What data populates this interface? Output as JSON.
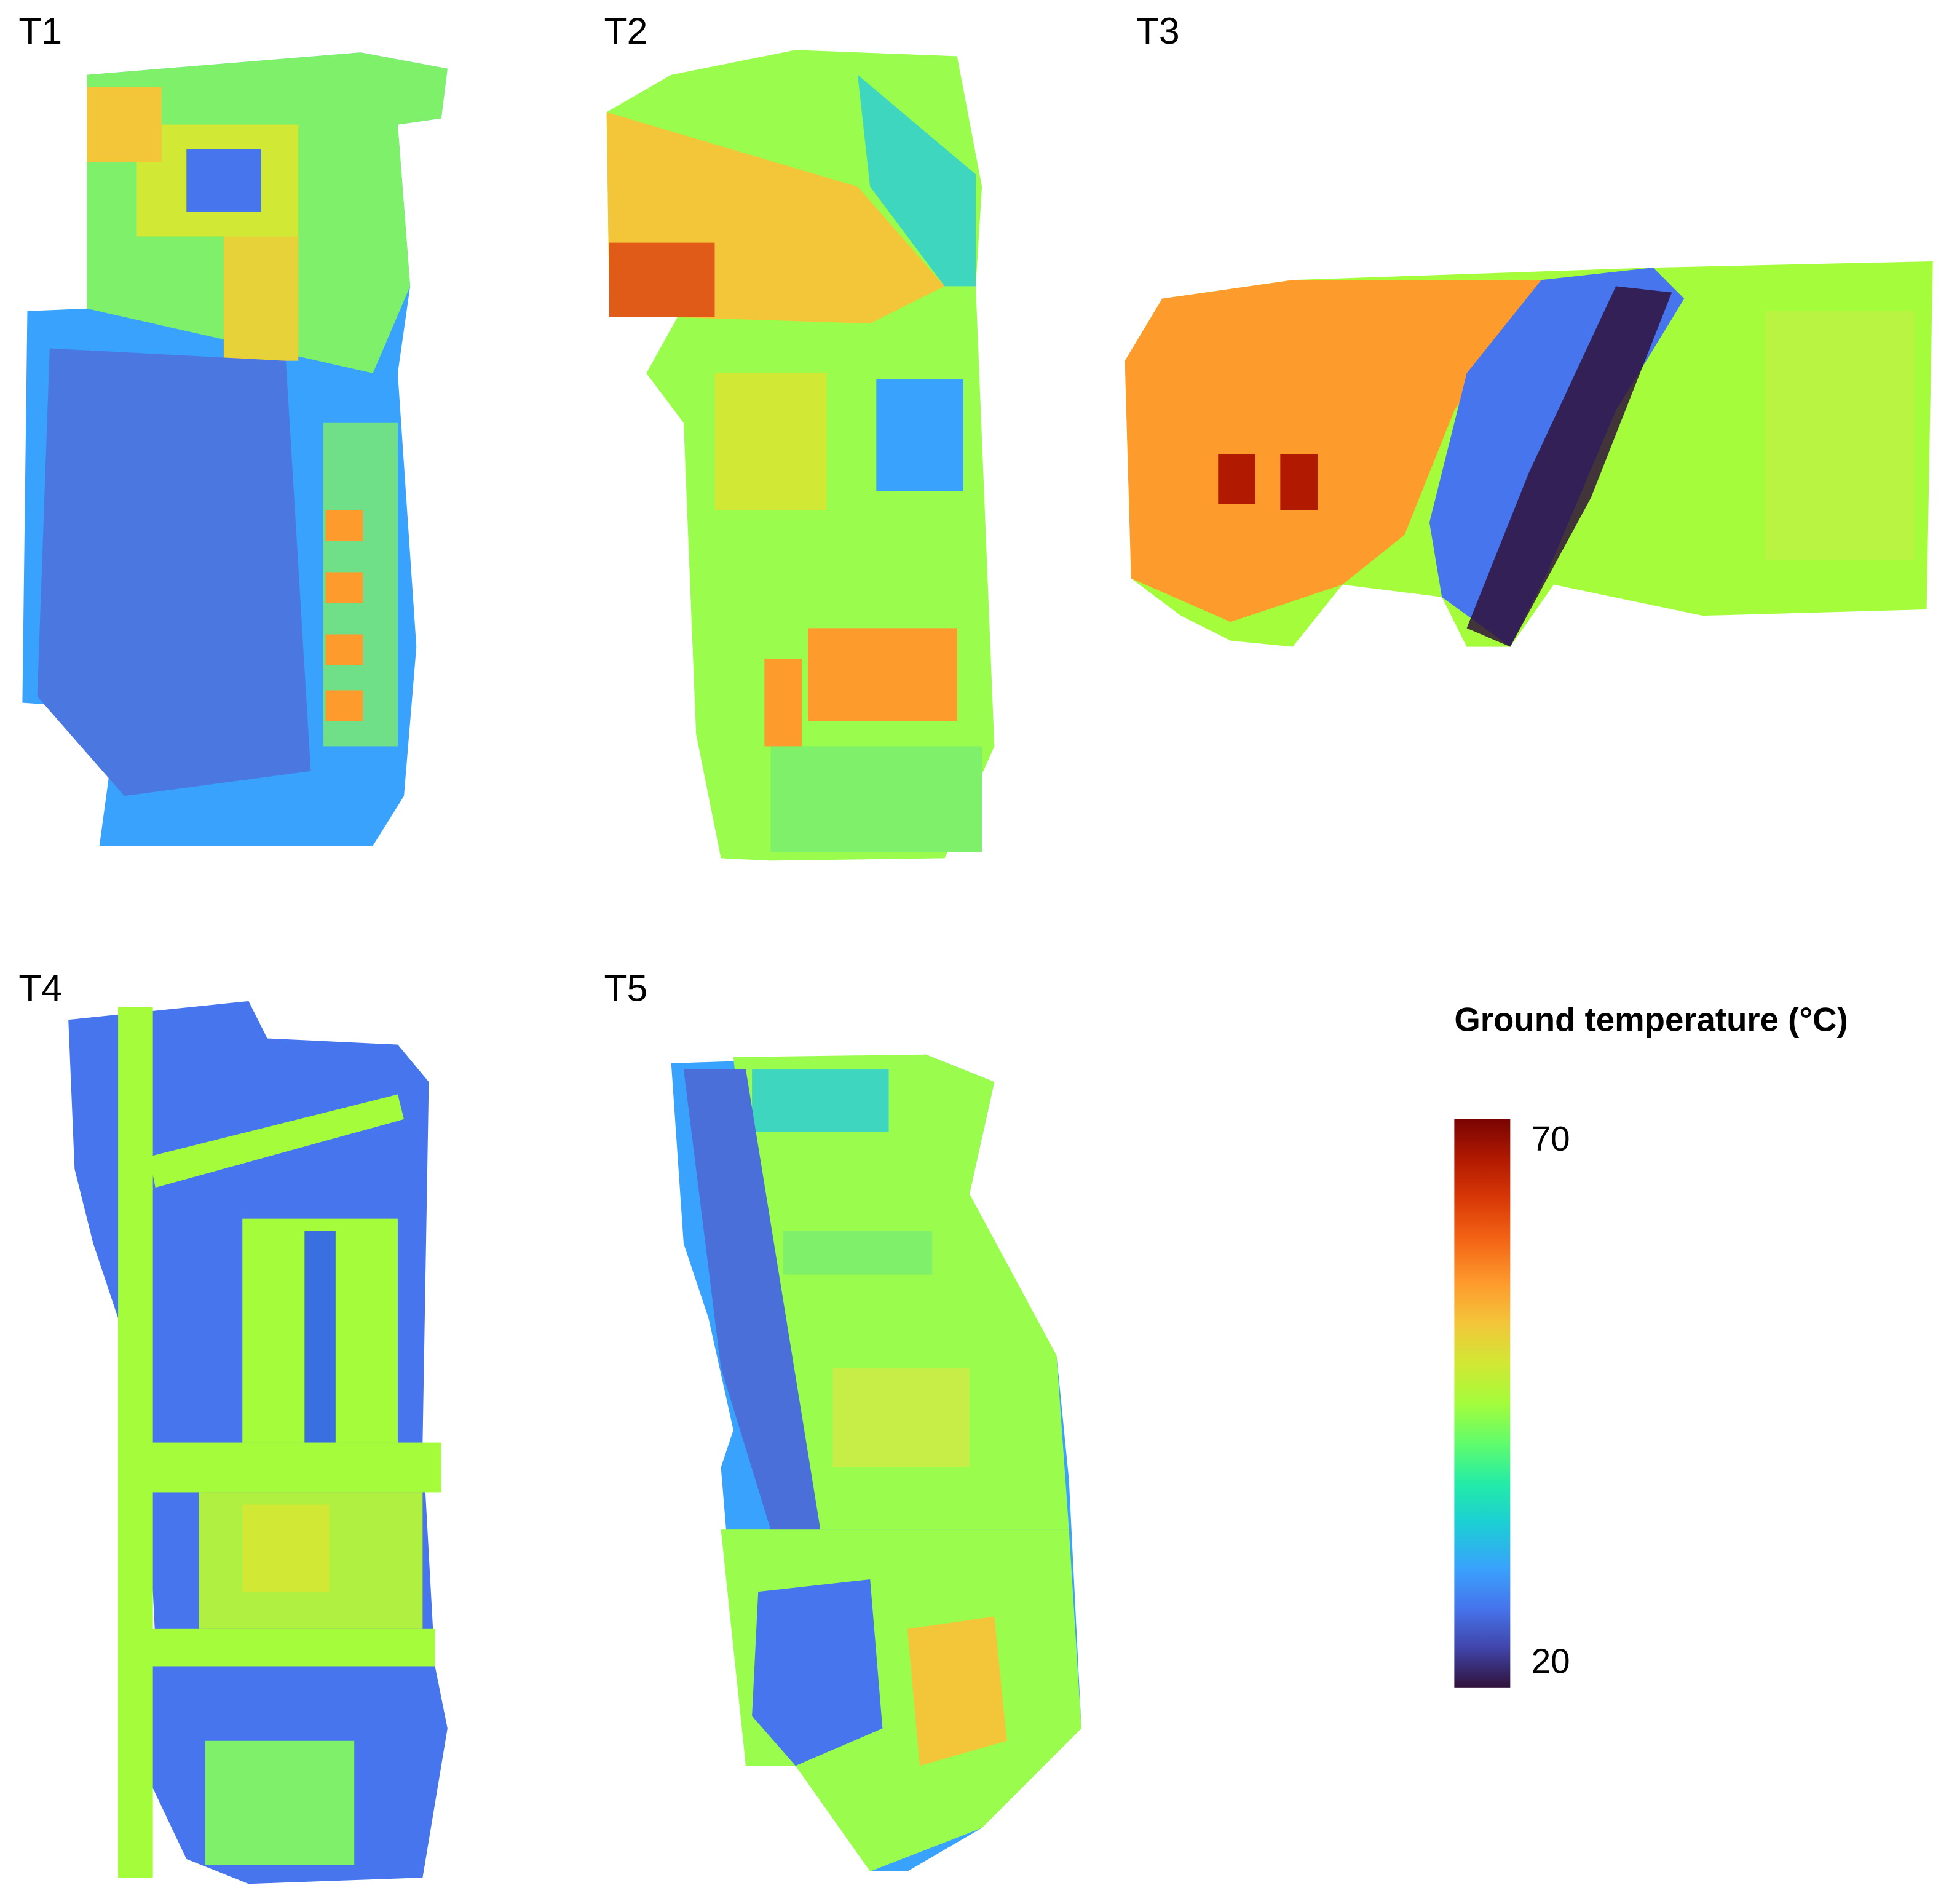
{
  "panels": [
    {
      "label": "T1"
    },
    {
      "label": "T2"
    },
    {
      "label": "T3"
    },
    {
      "label": "T4"
    },
    {
      "label": "T5"
    }
  ],
  "legend": {
    "title": "Ground temperature (°C)",
    "ticks": [
      "70",
      "20"
    ]
  }
}
